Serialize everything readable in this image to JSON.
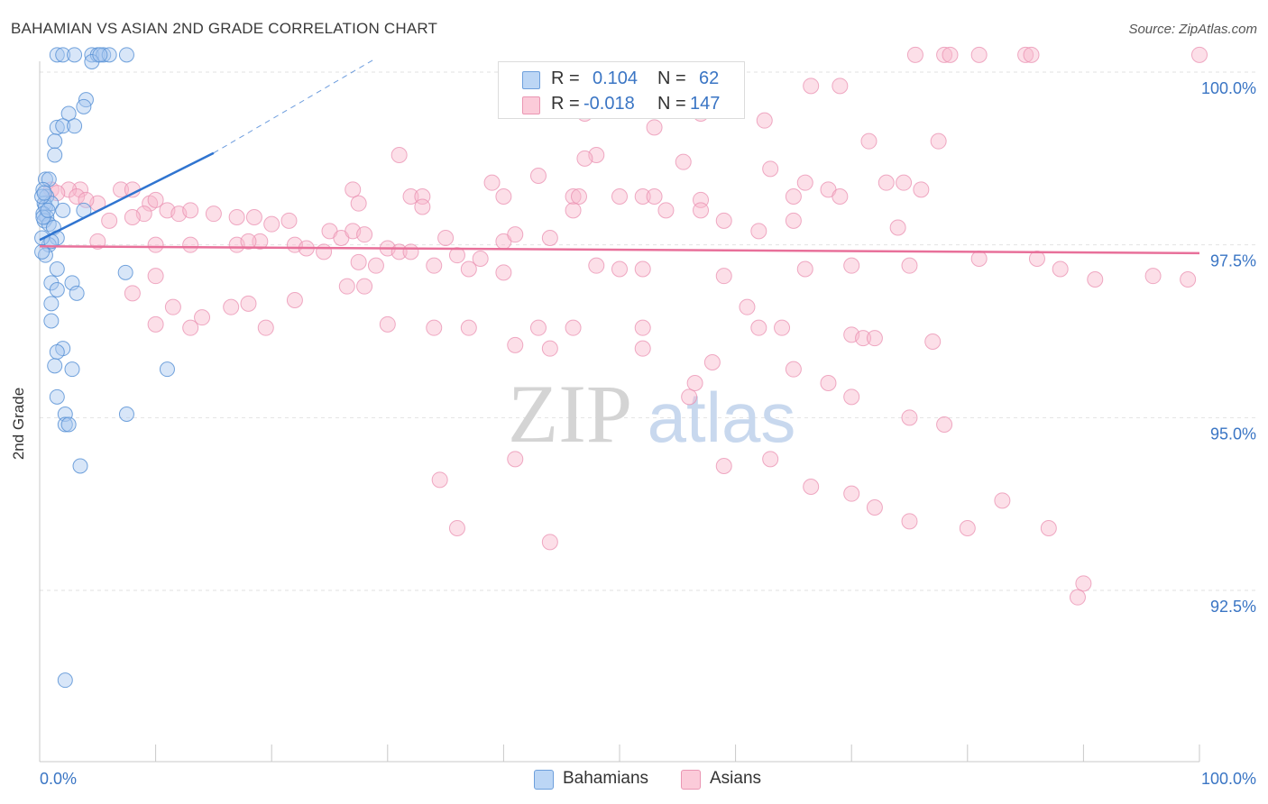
{
  "title": "BAHAMIAN VS ASIAN 2ND GRADE CORRELATION CHART",
  "source": "Source: ZipAtlas.com",
  "watermark": {
    "zip": "ZIP",
    "atlas": "atlas"
  },
  "legend": {
    "rows": [
      {
        "r_label": "R =",
        "r_value": "0.104",
        "n_label": "N =",
        "n_value": "62"
      },
      {
        "r_label": "R =",
        "r_value": "-0.018",
        "n_label": "N =",
        "n_value": "147"
      }
    ]
  },
  "bottom_legend": {
    "bahamians": "Bahamians",
    "asians": "Asians"
  },
  "colors": {
    "bahamians_fill": "#a8c8f0",
    "bahamians_stroke": "#5b93d6",
    "bahamians_line": "#2f74d0",
    "asians_fill": "#f8b8cc",
    "asians_stroke": "#ea8fb0",
    "asians_line": "#e8709a",
    "value_text": "#3a75c4"
  },
  "chart_data": {
    "type": "scatter",
    "title": "BAHAMIAN VS ASIAN 2ND GRADE CORRELATION CHART",
    "xlabel": "",
    "ylabel": "2nd Grade",
    "xlim": [
      0,
      100
    ],
    "ylim": [
      90.2,
      101.5
    ],
    "x_tick_labels": [
      "0.0%",
      "100.0%"
    ],
    "y_ticks": [
      100.0,
      97.5,
      95.0,
      92.5
    ],
    "y_tick_labels": [
      "100.0%",
      "97.5%",
      "95.0%",
      "92.5%"
    ],
    "grid": true,
    "series": [
      {
        "name": "Bahamians",
        "R": 0.104,
        "N": 62,
        "trend": {
          "x0": 0,
          "y0": 97.57,
          "x1": 15,
          "y1": 98.83,
          "dashed_to_x": 29,
          "dashed_to_y": 100.2
        },
        "points": [
          [
            1.5,
            100.25
          ],
          [
            2.0,
            100.25
          ],
          [
            4.5,
            100.25
          ],
          [
            5.0,
            100.25
          ],
          [
            5.5,
            100.25
          ],
          [
            6.0,
            100.25
          ],
          [
            7.5,
            100.25
          ],
          [
            4.5,
            100.15
          ],
          [
            3.0,
            100.25
          ],
          [
            5.2,
            100.25
          ],
          [
            4.0,
            99.6
          ],
          [
            3.8,
            99.5
          ],
          [
            2.5,
            99.4
          ],
          [
            1.5,
            99.2
          ],
          [
            2.0,
            99.22
          ],
          [
            3.0,
            99.22
          ],
          [
            1.3,
            99.0
          ],
          [
            1.3,
            98.8
          ],
          [
            0.5,
            98.45
          ],
          [
            0.8,
            98.45
          ],
          [
            0.3,
            98.3
          ],
          [
            0.6,
            98.2
          ],
          [
            0.4,
            98.1
          ],
          [
            0.5,
            98.05
          ],
          [
            1.0,
            98.1
          ],
          [
            2.0,
            98.0
          ],
          [
            3.8,
            98.0
          ],
          [
            0.3,
            97.95
          ],
          [
            0.6,
            97.9
          ],
          [
            0.4,
            97.85
          ],
          [
            0.8,
            97.8
          ],
          [
            1.2,
            97.75
          ],
          [
            1.5,
            97.6
          ],
          [
            0.8,
            97.5
          ],
          [
            0.5,
            97.35
          ],
          [
            1.5,
            97.15
          ],
          [
            7.4,
            97.1
          ],
          [
            1.0,
            96.95
          ],
          [
            2.8,
            96.95
          ],
          [
            1.5,
            96.85
          ],
          [
            3.2,
            96.8
          ],
          [
            1.0,
            96.65
          ],
          [
            1.0,
            96.4
          ],
          [
            2.0,
            96.0
          ],
          [
            1.5,
            95.95
          ],
          [
            1.3,
            95.75
          ],
          [
            2.8,
            95.7
          ],
          [
            11.0,
            95.7
          ],
          [
            1.5,
            95.3
          ],
          [
            2.2,
            95.05
          ],
          [
            7.5,
            95.05
          ],
          [
            2.2,
            94.9
          ],
          [
            2.5,
            94.9
          ],
          [
            3.5,
            94.3
          ],
          [
            2.2,
            91.2
          ],
          [
            0.2,
            97.6
          ],
          [
            0.3,
            97.9
          ],
          [
            0.2,
            98.2
          ],
          [
            0.4,
            98.25
          ],
          [
            0.7,
            98.0
          ],
          [
            0.2,
            97.4
          ],
          [
            1.0,
            97.55
          ]
        ]
      },
      {
        "name": "Asians",
        "R": -0.018,
        "N": 147,
        "trend": {
          "x0": 0,
          "y0": 97.48,
          "x1": 100,
          "y1": 97.38
        },
        "points": [
          [
            75.5,
            100.25
          ],
          [
            78,
            100.25
          ],
          [
            78.5,
            100.25
          ],
          [
            81,
            100.25
          ],
          [
            85,
            100.25
          ],
          [
            85.5,
            100.25
          ],
          [
            100,
            100.25
          ],
          [
            69,
            99.8
          ],
          [
            66.5,
            99.8
          ],
          [
            47,
            99.4
          ],
          [
            57,
            99.4
          ],
          [
            62.5,
            99.3
          ],
          [
            53,
            99.2
          ],
          [
            71.5,
            99.0
          ],
          [
            77.5,
            99.0
          ],
          [
            31,
            98.8
          ],
          [
            48,
            98.8
          ],
          [
            47,
            98.75
          ],
          [
            55.5,
            98.7
          ],
          [
            63,
            98.6
          ],
          [
            43,
            98.5
          ],
          [
            39,
            98.4
          ],
          [
            66,
            98.4
          ],
          [
            73,
            98.4
          ],
          [
            68,
            98.3
          ],
          [
            74.5,
            98.4
          ],
          [
            69,
            98.2
          ],
          [
            76,
            98.3
          ],
          [
            7,
            98.3
          ],
          [
            8,
            98.3
          ],
          [
            3.5,
            98.3
          ],
          [
            2.5,
            98.3
          ],
          [
            1,
            98.3
          ],
          [
            27,
            98.3
          ],
          [
            32,
            98.2
          ],
          [
            33,
            98.2
          ],
          [
            40,
            98.2
          ],
          [
            46,
            98.2
          ],
          [
            46.5,
            98.2
          ],
          [
            50,
            98.2
          ],
          [
            52,
            98.2
          ],
          [
            53,
            98.2
          ],
          [
            57,
            98.15
          ],
          [
            65,
            98.2
          ],
          [
            33,
            98.05
          ],
          [
            27.5,
            98.1
          ],
          [
            9.5,
            98.1
          ],
          [
            10,
            98.15
          ],
          [
            5,
            98.1
          ],
          [
            3.2,
            98.2
          ],
          [
            1.5,
            98.25
          ],
          [
            4,
            98.15
          ],
          [
            11,
            98.0
          ],
          [
            12,
            97.95
          ],
          [
            13,
            98.0
          ],
          [
            15,
            97.95
          ],
          [
            17,
            97.9
          ],
          [
            18.5,
            97.9
          ],
          [
            21.5,
            97.85
          ],
          [
            20,
            97.8
          ],
          [
            9,
            97.95
          ],
          [
            8,
            97.9
          ],
          [
            6,
            97.85
          ],
          [
            46,
            98.0
          ],
          [
            54,
            98.0
          ],
          [
            57,
            98.0
          ],
          [
            59,
            97.85
          ],
          [
            62,
            97.7
          ],
          [
            65,
            97.85
          ],
          [
            74,
            97.75
          ],
          [
            25,
            97.7
          ],
          [
            26,
            97.6
          ],
          [
            27,
            97.7
          ],
          [
            28,
            97.65
          ],
          [
            35,
            97.6
          ],
          [
            40,
            97.55
          ],
          [
            41,
            97.65
          ],
          [
            44,
            97.6
          ],
          [
            19,
            97.55
          ],
          [
            13,
            97.5
          ],
          [
            17,
            97.5
          ],
          [
            18,
            97.55
          ],
          [
            22,
            97.5
          ],
          [
            24.5,
            97.4
          ],
          [
            23,
            97.45
          ],
          [
            30,
            97.45
          ],
          [
            31,
            97.4
          ],
          [
            32,
            97.4
          ],
          [
            36,
            97.35
          ],
          [
            38,
            97.3
          ],
          [
            10,
            97.5
          ],
          [
            5,
            97.55
          ],
          [
            27.5,
            97.25
          ],
          [
            29,
            97.2
          ],
          [
            34,
            97.2
          ],
          [
            37,
            97.15
          ],
          [
            40,
            97.1
          ],
          [
            48,
            97.2
          ],
          [
            50,
            97.15
          ],
          [
            52,
            97.15
          ],
          [
            59,
            97.05
          ],
          [
            66,
            97.15
          ],
          [
            70,
            97.2
          ],
          [
            75,
            97.2
          ],
          [
            81,
            97.3
          ],
          [
            86,
            97.3
          ],
          [
            88,
            97.15
          ],
          [
            91,
            97.0
          ],
          [
            96,
            97.05
          ],
          [
            99,
            97.0
          ],
          [
            28,
            96.9
          ],
          [
            26.5,
            96.9
          ],
          [
            22,
            96.7
          ],
          [
            18,
            96.65
          ],
          [
            16.5,
            96.6
          ],
          [
            14,
            96.45
          ],
          [
            10,
            96.35
          ],
          [
            13,
            96.3
          ],
          [
            19.5,
            96.3
          ],
          [
            30,
            96.35
          ],
          [
            34,
            96.3
          ],
          [
            37,
            96.3
          ],
          [
            43,
            96.3
          ],
          [
            46,
            96.3
          ],
          [
            52,
            96.3
          ],
          [
            62,
            96.3
          ],
          [
            64,
            96.3
          ],
          [
            70,
            96.2
          ],
          [
            71,
            96.15
          ],
          [
            72,
            96.15
          ],
          [
            77,
            96.1
          ],
          [
            61,
            96.6
          ],
          [
            52,
            96.0
          ],
          [
            41,
            96.05
          ],
          [
            44,
            96.0
          ],
          [
            58,
            95.8
          ],
          [
            56,
            95.3
          ],
          [
            56.5,
            95.5
          ],
          [
            65,
            95.7
          ],
          [
            68,
            95.5
          ],
          [
            70,
            95.3
          ],
          [
            75,
            95.0
          ],
          [
            78,
            94.9
          ],
          [
            41,
            94.4
          ],
          [
            59,
            94.3
          ],
          [
            63,
            94.4
          ],
          [
            66.5,
            94.0
          ],
          [
            70,
            93.9
          ],
          [
            72,
            93.7
          ],
          [
            75,
            93.5
          ],
          [
            80,
            93.4
          ],
          [
            34.5,
            94.1
          ],
          [
            36,
            93.4
          ],
          [
            44,
            93.2
          ],
          [
            83,
            93.8
          ],
          [
            87,
            93.4
          ],
          [
            90,
            92.6
          ],
          [
            89.5,
            92.4
          ],
          [
            10,
            97.05
          ],
          [
            11.5,
            96.6
          ],
          [
            8,
            96.8
          ]
        ]
      }
    ]
  }
}
